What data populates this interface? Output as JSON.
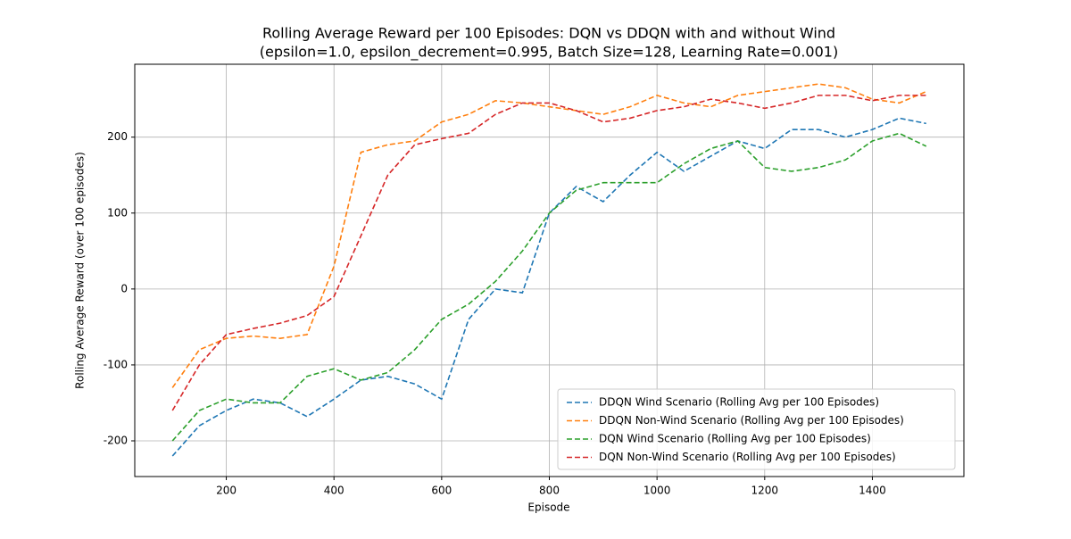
{
  "chart_data": {
    "type": "line",
    "title": "Rolling Average Reward per 100 Episodes: DQN vs DDQN with and without Wind",
    "subtitle": "(epsilon=1.0, epsilon_decrement=0.995, Batch Size=128, Learning Rate=0.001)",
    "x_label": "Episode",
    "y_label": "Rolling Average Reward (over 100 episodes)",
    "x": [
      100,
      150,
      200,
      250,
      300,
      350,
      400,
      450,
      500,
      550,
      600,
      650,
      700,
      750,
      800,
      850,
      900,
      950,
      1000,
      1050,
      1100,
      1150,
      1200,
      1250,
      1300,
      1350,
      1400,
      1450,
      1500
    ],
    "series": [
      {
        "name": "DDQN Wind Scenario (Rolling Avg per 100 Episodes)",
        "color": "#1f77b4",
        "values": [
          -220,
          -180,
          -160,
          -145,
          -150,
          -168,
          -145,
          -120,
          -115,
          -125,
          -145,
          -40,
          0,
          -5,
          100,
          135,
          115,
          150,
          180,
          155,
          175,
          195,
          185,
          210,
          210,
          200,
          210,
          225,
          218
        ]
      },
      {
        "name": "DDQN Non-Wind Scenario (Rolling Avg per 100 Episodes)",
        "color": "#ff7f0e",
        "values": [
          -130,
          -80,
          -65,
          -62,
          -65,
          -60,
          30,
          180,
          190,
          195,
          220,
          230,
          248,
          245,
          240,
          235,
          230,
          240,
          255,
          245,
          240,
          255,
          260,
          265,
          270,
          265,
          250,
          245,
          260
        ]
      },
      {
        "name": "DQN Wind Scenario (Rolling Avg per 100 Episodes)",
        "color": "#2ca02c",
        "values": [
          -200,
          -160,
          -145,
          -150,
          -150,
          -115,
          -105,
          -120,
          -110,
          -80,
          -40,
          -20,
          10,
          50,
          100,
          130,
          140,
          140,
          140,
          165,
          185,
          195,
          160,
          155,
          160,
          170,
          195,
          205,
          188
        ]
      },
      {
        "name": "DQN Non-Wind Scenario (Rolling Avg per 100 Episodes)",
        "color": "#d62728",
        "values": [
          -160,
          -100,
          -60,
          -52,
          -45,
          -35,
          -10,
          70,
          150,
          190,
          198,
          205,
          230,
          245,
          245,
          235,
          220,
          225,
          235,
          240,
          250,
          245,
          238,
          245,
          255,
          255,
          248,
          255,
          255
        ]
      }
    ],
    "xlim": [
      30,
      1570
    ],
    "xticks": [
      200,
      400,
      600,
      800,
      1000,
      1200,
      1400
    ],
    "ylim": [
      -247,
      296
    ],
    "yticks": [
      -200,
      -100,
      0,
      100,
      200
    ],
    "grid": true,
    "legend": "lower right",
    "line_style": "dashed"
  }
}
